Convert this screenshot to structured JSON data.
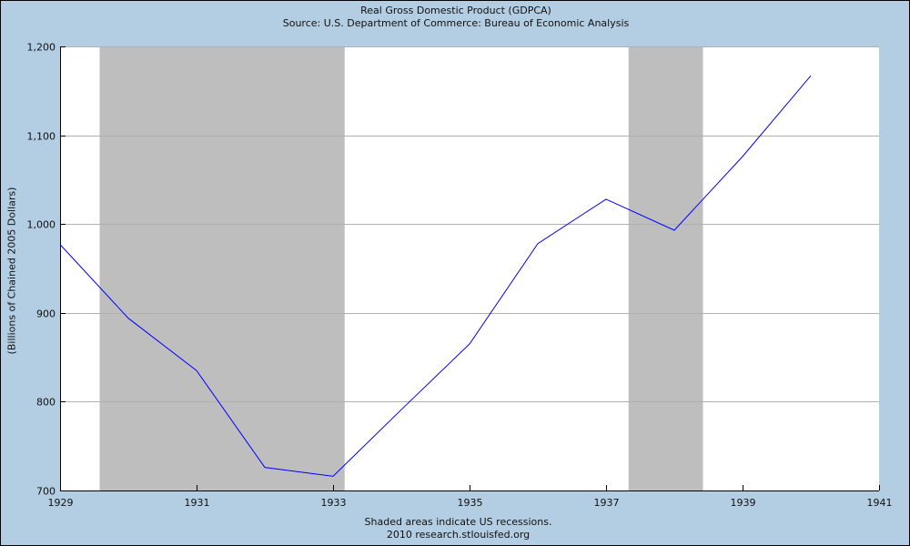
{
  "header": {
    "title": "Real Gross Domestic Product (GDPCA)",
    "source": "Source: U.S. Department of Commerce: Bureau of Economic Analysis"
  },
  "footer": {
    "note": "Shaded areas indicate US recessions.",
    "credit": "2010 research.stlouisfed.org"
  },
  "colors": {
    "background": "#b3cde3",
    "plot": "#ffffff",
    "recession": "#bebebe",
    "line": "#0000ff",
    "grid": "#b0b0b0"
  },
  "chart_data": {
    "type": "line",
    "title": "Real Gross Domestic Product (GDPCA)",
    "subtitle": "Source: U.S. Department of Commerce: Bureau of Economic Analysis",
    "xlabel": "",
    "ylabel": "(Billions of Chained 2005 Dollars)",
    "xlim": [
      1929,
      1941
    ],
    "ylim": [
      700,
      1200
    ],
    "x_ticks": [
      "1929",
      "1931",
      "1933",
      "1935",
      "1937",
      "1939",
      "1941"
    ],
    "y_ticks": [
      "700",
      "800",
      "900",
      "1,000",
      "1,100",
      "1,200"
    ],
    "grid": true,
    "legend": null,
    "series": [
      {
        "name": "GDPCA",
        "x": [
          1929,
          1930,
          1931,
          1932,
          1933,
          1934,
          1935,
          1936,
          1937,
          1938,
          1939,
          1940
        ],
        "values": [
          977,
          894,
          835,
          726,
          716,
          791,
          865,
          978,
          1028,
          993,
          1076,
          1167
        ]
      }
    ],
    "recessions": [
      {
        "start": 1929.58,
        "end": 1933.17
      },
      {
        "start": 1937.33,
        "end": 1938.42
      }
    ],
    "annotations": [
      "Shaded areas indicate US recessions.",
      "2010 research.stlouisfed.org"
    ]
  }
}
